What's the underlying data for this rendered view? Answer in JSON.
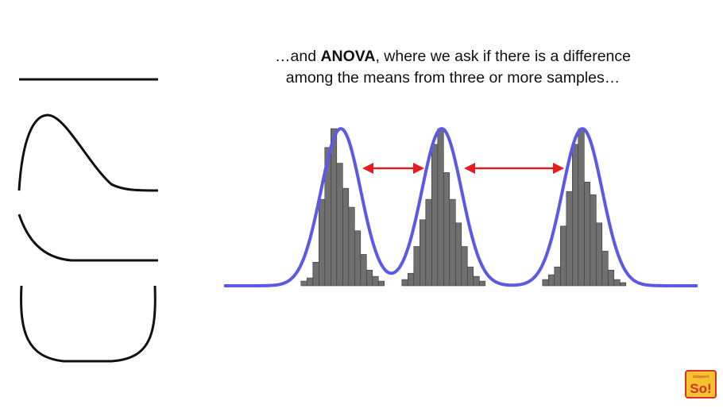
{
  "caption": {
    "lead": "…and ",
    "bold": "ANOVA",
    "rest": ", where we ask if there is a difference among the means from three or more samples…"
  },
  "colors": {
    "curve": "#5a5ae6",
    "histogram_bar": "#6f6f6f",
    "arrow": "#e02020",
    "line": "#111111",
    "logo_red": "#d8302a",
    "logo_yellow": "#f3c230"
  },
  "logo": {
    "text": "So!",
    "small_text": "statquest"
  },
  "samples": [
    {
      "name": "sample-1",
      "bars": [
        0.03,
        0.05,
        0.15,
        0.55,
        0.88,
        1.0,
        0.78,
        0.62,
        0.5,
        0.35,
        0.2,
        0.1,
        0.06,
        0.03
      ]
    },
    {
      "name": "sample-2",
      "bars": [
        0.04,
        0.08,
        0.25,
        0.42,
        0.55,
        0.9,
        1.0,
        0.72,
        0.55,
        0.4,
        0.25,
        0.12,
        0.06,
        0.03
      ]
    },
    {
      "name": "sample-3",
      "bars": [
        0.04,
        0.07,
        0.12,
        0.38,
        0.6,
        0.9,
        1.0,
        0.66,
        0.58,
        0.4,
        0.22,
        0.1,
        0.04,
        0.02
      ]
    }
  ]
}
